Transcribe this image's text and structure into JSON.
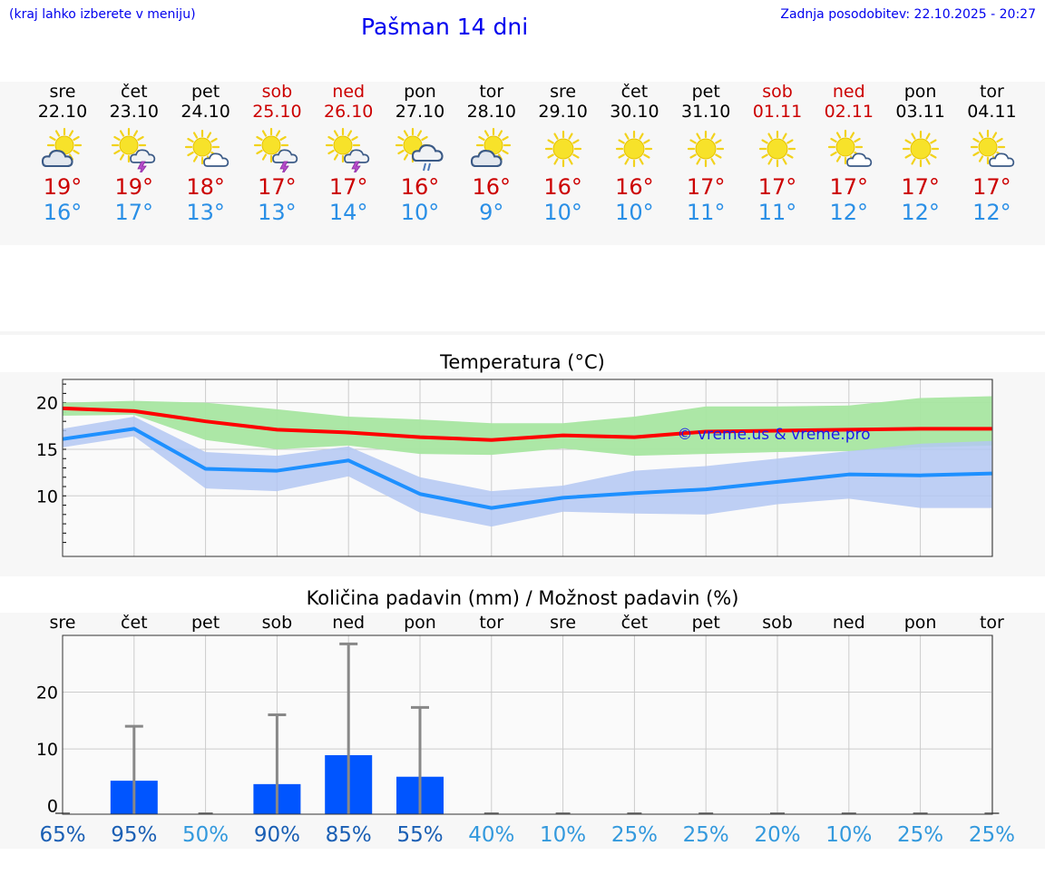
{
  "header": {
    "hint": "(kraj lahko izberete v meniju)",
    "title": "Pašman 14 dni",
    "updated": "Zadnja posodobitev: 22.10.2025 - 20:27"
  },
  "colors": {
    "max": "#cc0000",
    "min": "#2a8fe6",
    "weekend": "#cc0000",
    "bar": "#0055ff",
    "maxLine": "#ff0000",
    "minLine": "#1e90ff",
    "maxBand": "#a8e6a1",
    "minBand": "#b3c7f2"
  },
  "days": [
    {
      "name": "sre",
      "date": "22.10",
      "icon": "sun-cloud-icon",
      "max": "19°",
      "min": "16°",
      "weekend": false
    },
    {
      "name": "čet",
      "date": "23.10",
      "icon": "sun-thunderstorm-icon",
      "max": "19°",
      "min": "17°",
      "weekend": false
    },
    {
      "name": "pet",
      "date": "24.10",
      "icon": "sun-small-cloud-icon",
      "max": "18°",
      "min": "13°",
      "weekend": false
    },
    {
      "name": "sob",
      "date": "25.10",
      "icon": "sun-thunderstorm-icon",
      "max": "17°",
      "min": "13°",
      "weekend": true
    },
    {
      "name": "ned",
      "date": "26.10",
      "icon": "sun-thunderstorm-icon",
      "max": "17°",
      "min": "14°",
      "weekend": true
    },
    {
      "name": "pon",
      "date": "27.10",
      "icon": "sun-rain-cloud-icon",
      "max": "16°",
      "min": "10°",
      "weekend": false
    },
    {
      "name": "tor",
      "date": "28.10",
      "icon": "sun-cloud-icon",
      "max": "16°",
      "min": "9°",
      "weekend": false
    },
    {
      "name": "sre",
      "date": "29.10",
      "icon": "sun-icon",
      "max": "16°",
      "min": "10°",
      "weekend": false
    },
    {
      "name": "čet",
      "date": "30.10",
      "icon": "sun-icon",
      "max": "16°",
      "min": "10°",
      "weekend": false
    },
    {
      "name": "pet",
      "date": "31.10",
      "icon": "sun-icon",
      "max": "17°",
      "min": "11°",
      "weekend": false
    },
    {
      "name": "sob",
      "date": "01.11",
      "icon": "sun-icon",
      "max": "17°",
      "min": "11°",
      "weekend": true
    },
    {
      "name": "ned",
      "date": "02.11",
      "icon": "sun-small-cloud-icon",
      "max": "17°",
      "min": "12°",
      "weekend": true
    },
    {
      "name": "pon",
      "date": "03.11",
      "icon": "sun-icon",
      "max": "17°",
      "min": "12°",
      "weekend": false
    },
    {
      "name": "tor",
      "date": "04.11",
      "icon": "sun-small-cloud-icon",
      "max": "17°",
      "min": "12°",
      "weekend": false
    }
  ],
  "chart_data": [
    {
      "type": "line",
      "title": "Temperatura (°C)",
      "watermark": "© vreme.us & vreme.pro",
      "ylim": [
        3.5,
        22.5
      ],
      "yticks": [
        10,
        15,
        20
      ],
      "grid": true,
      "x_days": [
        0,
        1,
        2,
        3,
        4,
        5,
        6,
        7,
        8,
        9,
        10,
        11,
        12,
        13
      ],
      "series": [
        {
          "values": [
            19.4,
            19.1,
            18.0,
            17.1,
            16.8,
            16.3,
            16.0,
            16.5,
            16.3,
            16.9,
            17.0,
            17.1,
            17.2,
            17.2
          ],
          "band_low": [
            18.6,
            18.7,
            16.0,
            15.0,
            15.4,
            14.5,
            14.4,
            15.1,
            14.3,
            14.5,
            14.7,
            14.8,
            15.2,
            15.4
          ],
          "band_high": [
            20.0,
            20.2,
            20.0,
            19.3,
            18.5,
            18.2,
            17.8,
            17.8,
            18.5,
            19.6,
            19.6,
            19.7,
            20.5,
            20.7
          ]
        },
        {
          "values": [
            16.1,
            17.2,
            12.9,
            12.7,
            13.8,
            10.2,
            8.7,
            9.8,
            10.3,
            10.7,
            11.5,
            12.3,
            12.2,
            12.4
          ],
          "band_low": [
            15.2,
            16.4,
            10.8,
            10.5,
            12.1,
            8.2,
            6.7,
            8.3,
            8.1,
            8.0,
            9.1,
            9.7,
            8.7,
            8.7
          ],
          "band_high": [
            17.2,
            18.5,
            14.7,
            14.3,
            15.3,
            12.0,
            10.5,
            11.1,
            12.7,
            13.2,
            14.0,
            14.8,
            15.6,
            15.9
          ]
        }
      ]
    },
    {
      "type": "bar",
      "title": "Količina padavin (mm) / Možnost padavin (%)",
      "ylim": [
        -1.5,
        30
      ],
      "yticks": [
        0,
        10,
        20
      ],
      "grid": true,
      "categories": [
        "sre",
        "čet",
        "pet",
        "sob",
        "ned",
        "pon",
        "tor",
        "sre",
        "čet",
        "pet",
        "sob",
        "ned",
        "pon",
        "tor"
      ],
      "values": [
        0,
        4.4,
        0,
        3.8,
        8.9,
        5.1,
        0,
        0,
        0,
        0,
        0,
        0,
        0,
        0
      ],
      "error_high": [
        0,
        14.0,
        0,
        16.0,
        28.5,
        17.3,
        0,
        0,
        0,
        0,
        0,
        0,
        0,
        0
      ],
      "chance": [
        "65%",
        "95%",
        "50%",
        "90%",
        "85%",
        "55%",
        "40%",
        "10%",
        "25%",
        "25%",
        "20%",
        "10%",
        "25%",
        "25%"
      ],
      "chance_high": [
        true,
        true,
        false,
        true,
        true,
        true,
        false,
        false,
        false,
        false,
        false,
        false,
        false,
        false
      ]
    }
  ]
}
